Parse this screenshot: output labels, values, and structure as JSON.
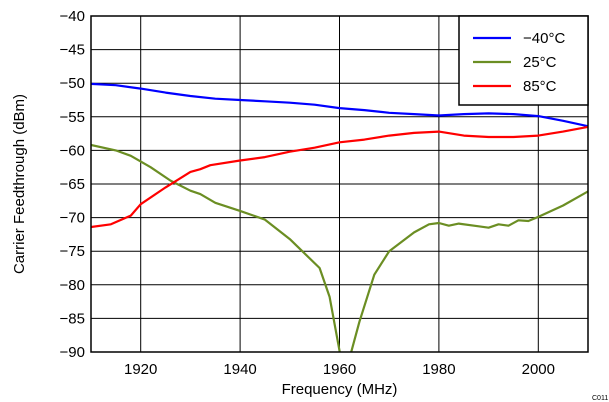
{
  "chart_data": {
    "type": "line",
    "title": "",
    "xlabel": "Frequency (MHz)",
    "ylabel": "Carrier Feedthrough (dBm)",
    "xlim": [
      1910,
      2010
    ],
    "ylim": [
      -90,
      -40
    ],
    "x_ticks": [
      1920,
      1940,
      1960,
      1980,
      2000
    ],
    "x_tick_labels": [
      "1920",
      "1940",
      "1960",
      "1980",
      "2000"
    ],
    "y_ticks": [
      -40,
      -45,
      -50,
      -55,
      -60,
      -65,
      -70,
      -75,
      -80,
      -85,
      -90
    ],
    "y_tick_labels": [
      "−40",
      "−45",
      "−50",
      "−55",
      "−60",
      "−65",
      "−70",
      "−75",
      "−80",
      "−85",
      "−90"
    ],
    "grid": true,
    "legend_position": "top-right",
    "series": [
      {
        "name": "−40°C",
        "color": "#0000ff",
        "x": [
          1910,
          1915,
          1920,
          1925,
          1930,
          1935,
          1940,
          1945,
          1950,
          1955,
          1960,
          1965,
          1970,
          1975,
          1980,
          1985,
          1990,
          1995,
          2000,
          2005,
          2010
        ],
        "y": [
          -50.1,
          -50.3,
          -50.8,
          -51.4,
          -51.9,
          -52.3,
          -52.5,
          -52.7,
          -52.9,
          -53.2,
          -53.7,
          -54.0,
          -54.4,
          -54.6,
          -54.8,
          -54.6,
          -54.5,
          -54.6,
          -54.9,
          -55.6,
          -56.4
        ]
      },
      {
        "name": "25°C",
        "color": "#6b8e23",
        "x": [
          1910,
          1915,
          1918,
          1922,
          1926,
          1930,
          1932,
          1935,
          1940,
          1945,
          1950,
          1956,
          1958,
          1960,
          1961,
          1962,
          1964,
          1967,
          1970,
          1975,
          1978,
          1980,
          1982,
          1984,
          1988,
          1990,
          1992,
          1994,
          1996,
          1998,
          2000,
          2005,
          2010
        ],
        "y": [
          -59.2,
          -60.0,
          -60.8,
          -62.5,
          -64.5,
          -66.0,
          -66.5,
          -67.8,
          -69.0,
          -70.3,
          -73.2,
          -77.5,
          -81.8,
          -89.8,
          -93.0,
          -91.0,
          -85.5,
          -78.5,
          -75.0,
          -72.2,
          -71.0,
          -70.8,
          -71.2,
          -70.9,
          -71.3,
          -71.5,
          -71.0,
          -71.2,
          -70.4,
          -70.5,
          -69.9,
          -68.2,
          -66.1
        ]
      },
      {
        "name": "85°C",
        "color": "#ff0000",
        "x": [
          1910,
          1914,
          1918,
          1920,
          1925,
          1930,
          1932,
          1934,
          1940,
          1945,
          1950,
          1955,
          1960,
          1965,
          1970,
          1975,
          1980,
          1985,
          1990,
          1995,
          2000,
          2005,
          2010
        ],
        "y": [
          -71.4,
          -71.0,
          -69.7,
          -68.0,
          -65.5,
          -63.2,
          -62.8,
          -62.2,
          -61.5,
          -61.0,
          -60.2,
          -59.6,
          -58.8,
          -58.4,
          -57.8,
          -57.4,
          -57.2,
          -57.8,
          -58.0,
          -58.0,
          -57.8,
          -57.2,
          -56.5
        ]
      }
    ]
  },
  "footer": {
    "figure_code": "C011"
  }
}
